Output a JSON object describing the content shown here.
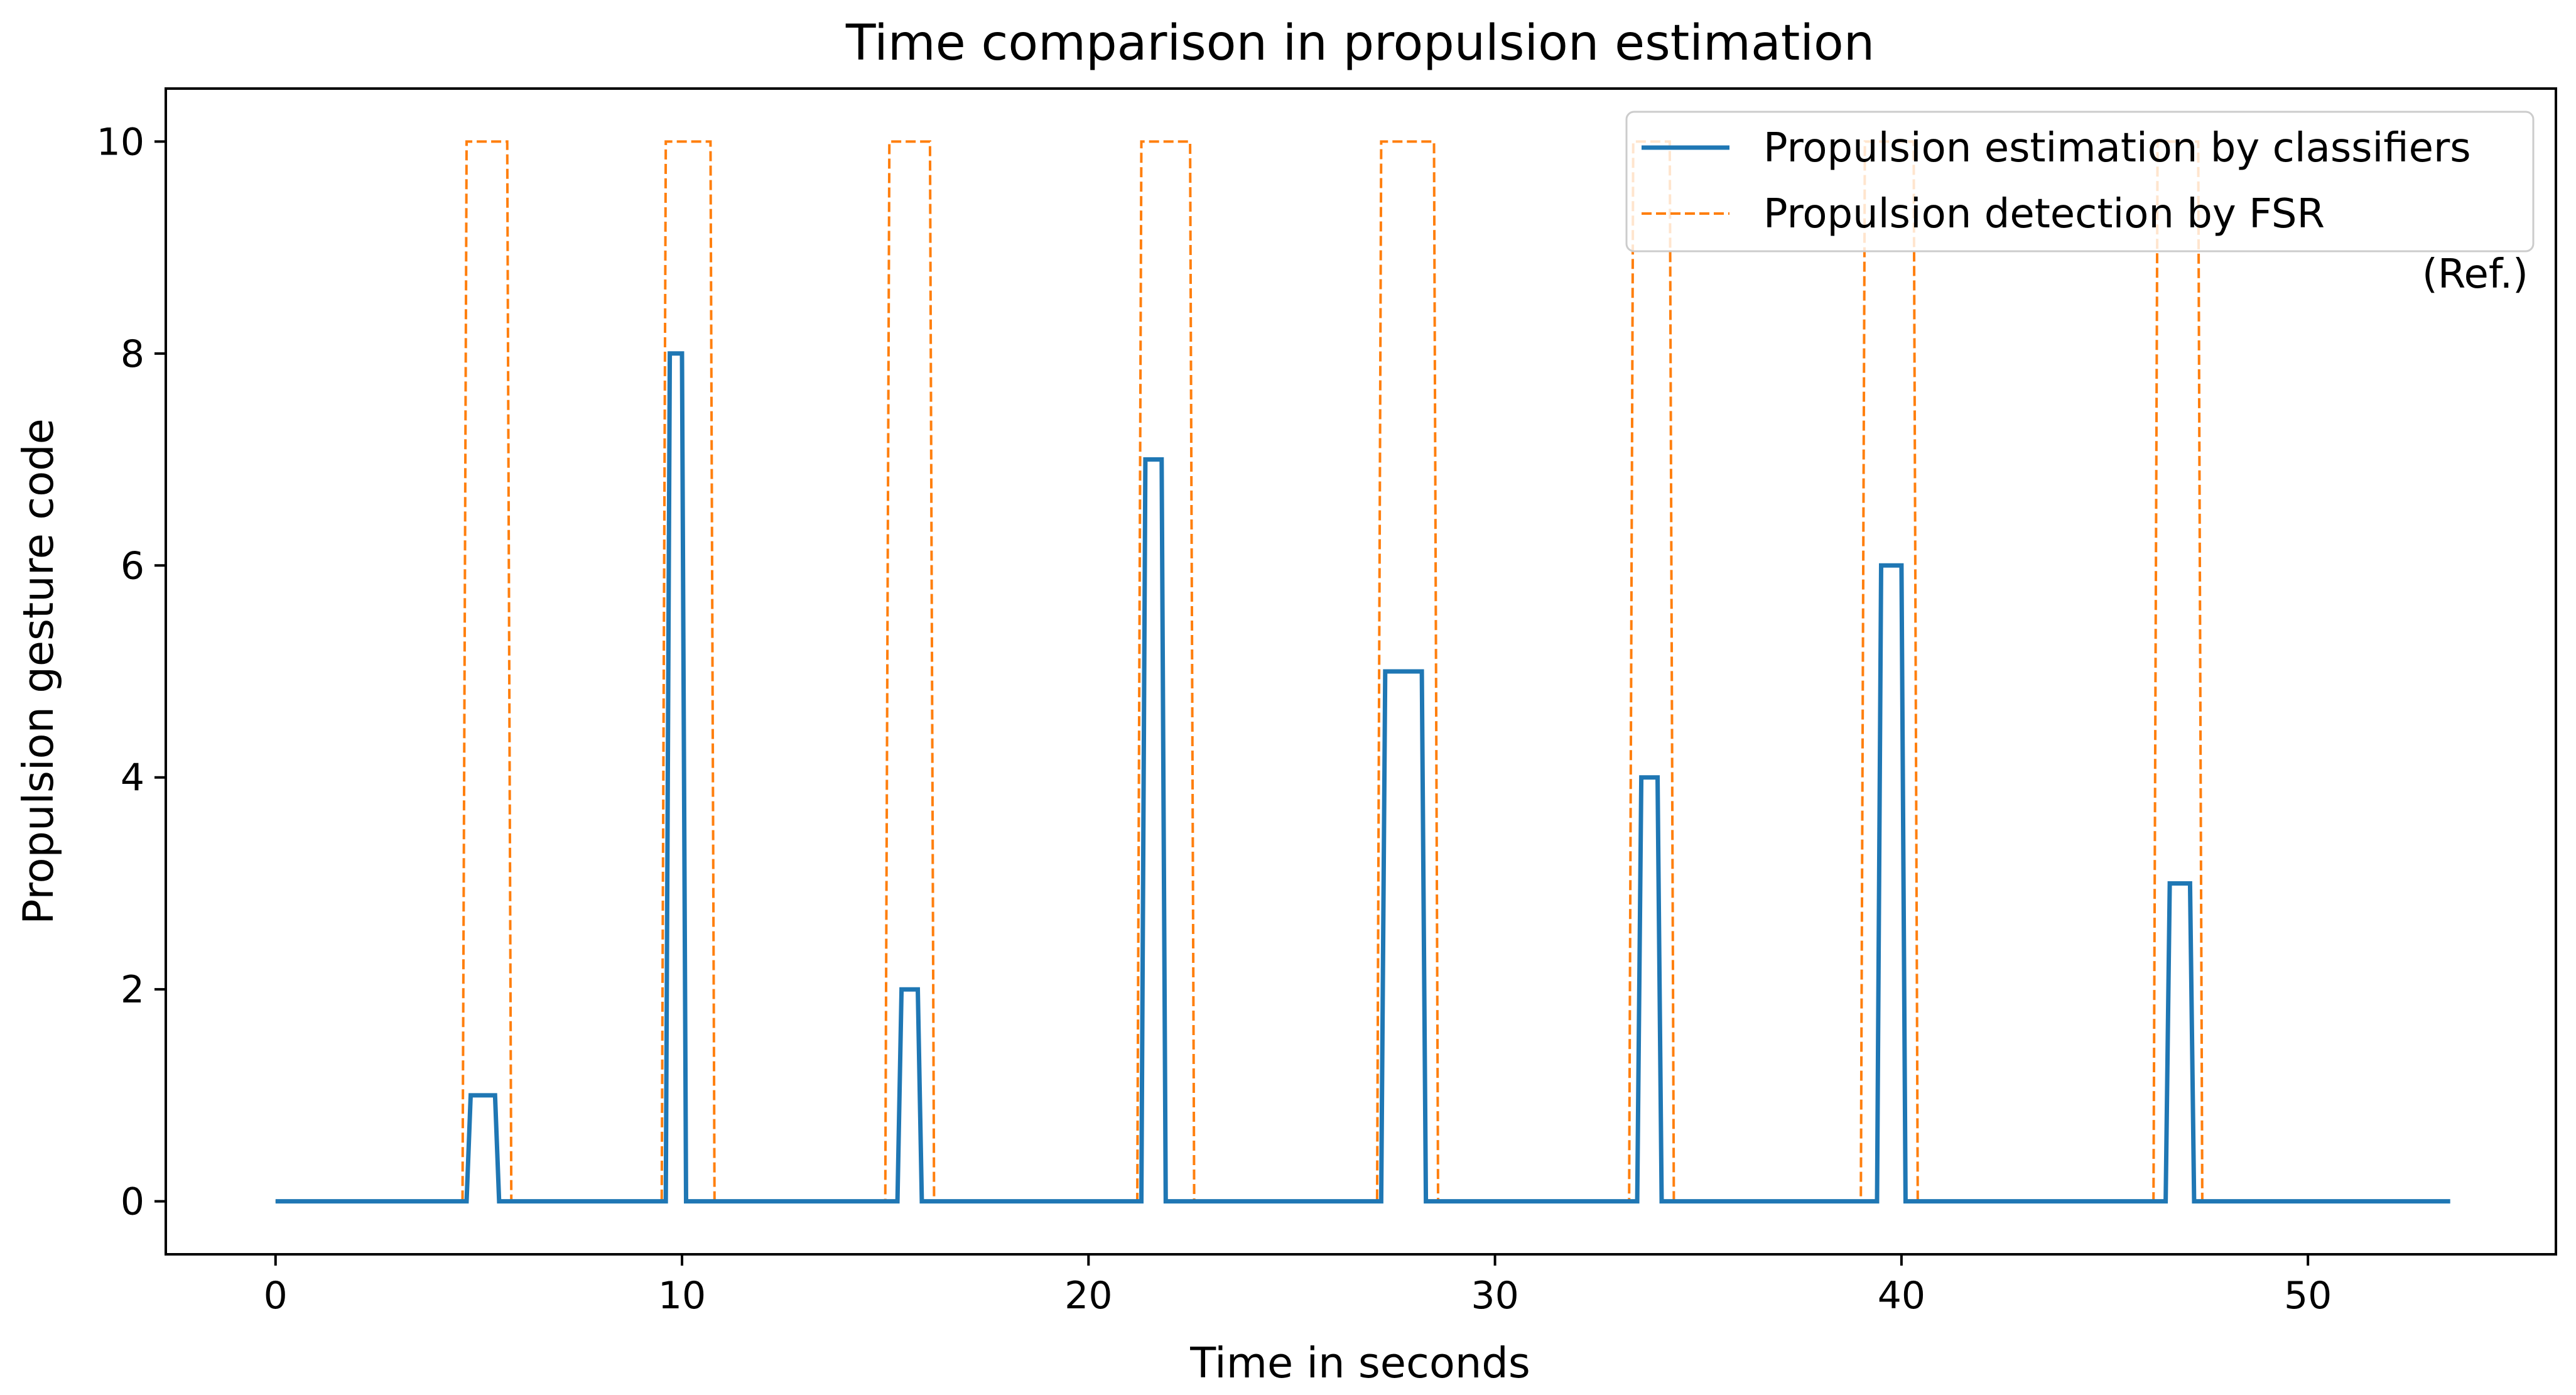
{
  "chart_data": {
    "type": "line",
    "title": "Time comparison in propulsion estimation",
    "xlabel": "Time in seconds",
    "ylabel": "Propulsion gesture code",
    "xlim": [
      -2.7,
      56.1
    ],
    "ylim": [
      -0.5,
      10.5
    ],
    "xticks": [
      0,
      10,
      20,
      30,
      40,
      50
    ],
    "yticks": [
      0,
      2,
      4,
      6,
      8,
      10
    ],
    "grid": false,
    "legend_position": "top-right",
    "legend_note": "(Ref.)",
    "series": [
      {
        "name": "Propulsion estimation by classifiers",
        "style": "solid",
        "color": "#1f77b4",
        "x": [
          0,
          4.7,
          4.8,
          5.4,
          5.5,
          9.6,
          9.7,
          10.0,
          10.1,
          15.3,
          15.4,
          15.8,
          15.9,
          21.3,
          21.4,
          21.8,
          21.9,
          27.2,
          27.3,
          28.2,
          28.3,
          33.5,
          33.6,
          34.0,
          34.1,
          39.4,
          39.5,
          40.0,
          40.1,
          46.5,
          46.6,
          47.1,
          47.2,
          53.5
        ],
        "y": [
          0,
          0,
          1,
          1,
          0,
          0,
          8,
          8,
          0,
          0,
          2,
          2,
          0,
          0,
          7,
          7,
          0,
          0,
          5,
          5,
          0,
          0,
          4,
          4,
          0,
          0,
          6,
          6,
          0,
          0,
          3,
          3,
          0,
          0
        ]
      },
      {
        "name": "Propulsion detection by FSR",
        "style": "dashed",
        "color": "#ff7f0e",
        "x": [
          0,
          4.6,
          4.7,
          5.7,
          5.8,
          9.5,
          9.6,
          10.7,
          10.8,
          15.0,
          15.1,
          16.1,
          16.2,
          21.2,
          21.3,
          22.5,
          22.6,
          27.1,
          27.2,
          28.5,
          28.6,
          33.3,
          33.4,
          34.3,
          34.4,
          39.0,
          39.1,
          40.3,
          40.4,
          46.2,
          46.3,
          47.3,
          47.4,
          53.5
        ],
        "y": [
          0,
          0,
          10,
          10,
          0,
          0,
          10,
          10,
          0,
          0,
          10,
          10,
          0,
          0,
          10,
          10,
          0,
          0,
          10,
          10,
          0,
          0,
          10,
          10,
          0,
          0,
          10,
          10,
          0,
          0,
          10,
          10,
          0,
          0
        ]
      }
    ]
  }
}
